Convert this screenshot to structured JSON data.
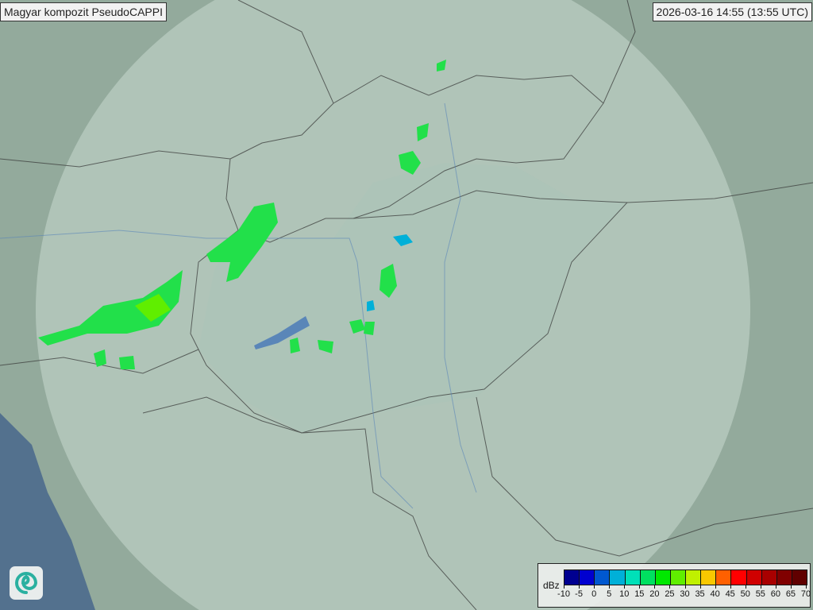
{
  "header": {
    "title": "Magyar kompozit  PseudoCAPPI",
    "timestamp": "2026-03-16 14:55 (13:55 UTC)"
  },
  "legend": {
    "unit": "dBz",
    "ticks": [
      "-10",
      "-5",
      "0",
      "5",
      "10",
      "15",
      "20",
      "25",
      "30",
      "35",
      "40",
      "45",
      "50",
      "55",
      "60",
      "65",
      "70"
    ],
    "colors": [
      "#000090",
      "#0000d0",
      "#0058d0",
      "#00b0d8",
      "#00e0b8",
      "#00e060",
      "#00e800",
      "#60ee00",
      "#c0f000",
      "#f8c800",
      "#ff6000",
      "#ff0000",
      "#d00000",
      "#a80000",
      "#800000",
      "#600000"
    ]
  },
  "logo": {
    "icon": "swirl-logo-icon"
  },
  "map": {
    "land_color": "#8fa89a",
    "sea_color": "#4f6f8f",
    "coverage_color": "#c8dcd4"
  }
}
